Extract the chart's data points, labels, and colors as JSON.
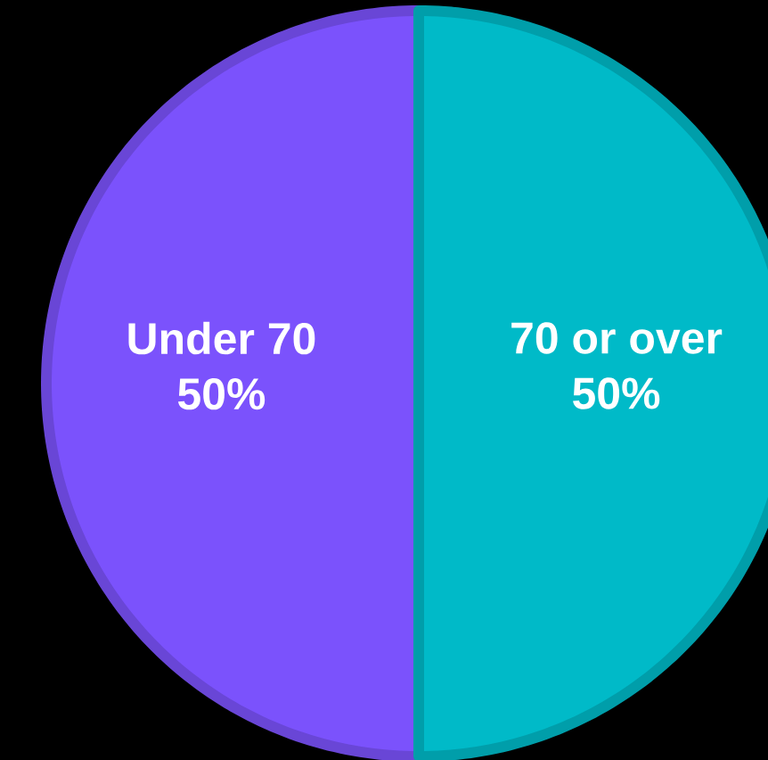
{
  "chart_data": {
    "type": "pie",
    "categories": [
      "Under 70",
      "70 or over"
    ],
    "values": [
      50,
      50
    ],
    "colors": [
      "#7b52fc",
      "#00bac8"
    ],
    "value_labels": [
      "50%",
      "50%"
    ]
  }
}
